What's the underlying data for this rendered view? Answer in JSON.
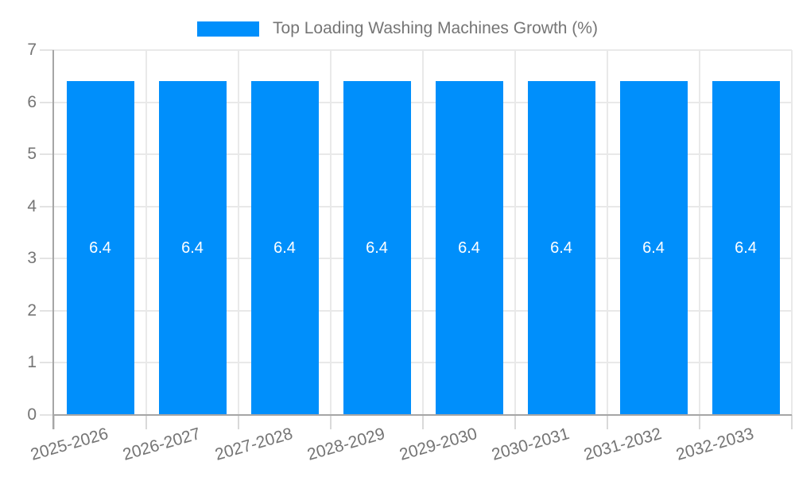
{
  "legend": {
    "label": "Top Loading Washing Machines Growth (%)"
  },
  "chart_data": {
    "type": "bar",
    "title": "Top Loading Washing Machines Growth (%)",
    "series_name": "Top Loading Washing Machines Growth (%)",
    "categories": [
      "2025-2026",
      "2026-2027",
      "2027-2028",
      "2028-2029",
      "2029-2030",
      "2030-2031",
      "2031-2032",
      "2032-2033"
    ],
    "values": [
      6.4,
      6.4,
      6.4,
      6.4,
      6.4,
      6.4,
      6.4,
      6.4
    ],
    "xlabel": "",
    "ylabel": "",
    "ylim": [
      0,
      7
    ],
    "yticks": [
      0,
      1,
      2,
      3,
      4,
      5,
      6,
      7
    ],
    "grid": true,
    "legend_position": "top",
    "value_labels_shown": true,
    "bar_color": "#008FFB",
    "value_label_color": "#FFFFFF",
    "axis_text_color": "#757575",
    "grid_color": "#E9E9E9",
    "axis_line_color": "#A6A6A6"
  }
}
